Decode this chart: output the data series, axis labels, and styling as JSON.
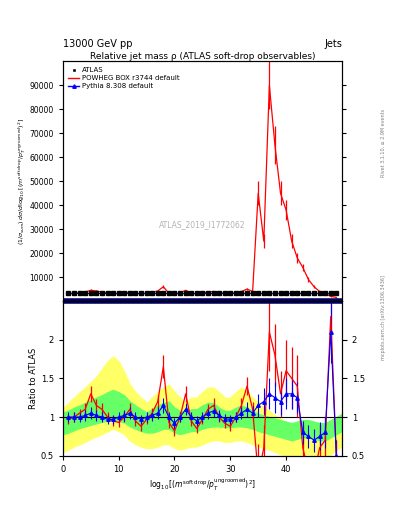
{
  "title": "Relative jet mass ρ (ATLAS soft-drop observables)",
  "header_left": "13000 GeV pp",
  "header_right": "Jets",
  "right_label_top": "Rivet 3.1.10, ≥ 2.9M events",
  "right_label_bot": "mcplots.cern.ch [arXiv:1306.3436]",
  "watermark": "ATLAS_2019_I1772062",
  "ylabel_ratio": "Ratio to ATLAS",
  "xlabel": "$\\log_{10}[(m^{\\mathrm{soft\\,drop}}/p_T^{\\mathrm{ungroomed}})^2]$",
  "ylim_main": [
    0,
    100000
  ],
  "ylim_ratio": [
    0.5,
    2.5
  ],
  "xlim": [
    0,
    50
  ],
  "xticks": [
    0,
    10,
    20,
    30,
    40
  ],
  "xticklabels": [
    "0",
    "10",
    "20",
    "30",
    "40"
  ],
  "yticks_main": [
    10000,
    20000,
    30000,
    40000,
    50000,
    60000,
    70000,
    80000,
    90000
  ],
  "ytick_main_labels": [
    "10000",
    "20000",
    "30000",
    "40000",
    "50000",
    "60000",
    "70000",
    "80000",
    "90000"
  ],
  "yticks_ratio": [
    0.5,
    1.0,
    1.5,
    2.0
  ],
  "ytick_ratio_labels": [
    "0.5",
    "1",
    "1.5",
    "2"
  ],
  "atlas_x": [
    1,
    2,
    3,
    4,
    5,
    6,
    7,
    8,
    9,
    10,
    11,
    12,
    13,
    14,
    15,
    16,
    17,
    18,
    19,
    20,
    21,
    22,
    23,
    24,
    25,
    26,
    27,
    28,
    29,
    30,
    31,
    32,
    33,
    34,
    35,
    36,
    37,
    38,
    39,
    40,
    41,
    42,
    43,
    44,
    45,
    46,
    47,
    48,
    49
  ],
  "atlas_y": [
    3200,
    3200,
    3200,
    3200,
    3200,
    3200,
    3200,
    3200,
    3200,
    3200,
    3200,
    3200,
    3200,
    3200,
    3200,
    3200,
    3200,
    3200,
    3200,
    3200,
    3200,
    3200,
    3200,
    3200,
    3200,
    3200,
    3200,
    3200,
    3200,
    3200,
    3200,
    3200,
    3200,
    3200,
    3200,
    3200,
    3200,
    3200,
    3200,
    3200,
    3200,
    3200,
    3200,
    3200,
    3200,
    3200,
    3200,
    3200,
    3200
  ],
  "atlas_yerr": [
    200,
    200,
    200,
    200,
    200,
    200,
    200,
    200,
    200,
    200,
    200,
    200,
    200,
    200,
    200,
    200,
    200,
    200,
    200,
    200,
    200,
    200,
    200,
    200,
    200,
    200,
    200,
    200,
    200,
    200,
    200,
    200,
    200,
    200,
    200,
    200,
    200,
    200,
    200,
    200,
    200,
    200,
    200,
    200,
    200,
    200,
    200,
    200,
    200
  ],
  "powheg_x": [
    1,
    2,
    3,
    4,
    5,
    6,
    7,
    8,
    9,
    10,
    11,
    12,
    13,
    14,
    15,
    16,
    17,
    18,
    19,
    20,
    21,
    22,
    23,
    24,
    25,
    26,
    27,
    28,
    29,
    30,
    31,
    32,
    33,
    34,
    35,
    36,
    37,
    38,
    39,
    40,
    41,
    42,
    43,
    44,
    45,
    46,
    47,
    48,
    49
  ],
  "powheg_y": [
    3100,
    3200,
    3500,
    3800,
    4500,
    4200,
    3800,
    3500,
    3200,
    3100,
    3400,
    3800,
    3200,
    3000,
    3300,
    3700,
    4200,
    6000,
    3200,
    2800,
    3500,
    4500,
    3300,
    3000,
    3400,
    3800,
    4000,
    3500,
    3200,
    3100,
    3500,
    4000,
    5000,
    4000,
    45000,
    25000,
    90000,
    65000,
    45000,
    38000,
    25000,
    18000,
    14000,
    9000,
    6000,
    4000,
    3000,
    2000,
    1500
  ],
  "powheg_yerr": [
    200,
    200,
    200,
    300,
    400,
    300,
    300,
    200,
    200,
    200,
    200,
    300,
    200,
    200,
    200,
    200,
    300,
    500,
    200,
    200,
    200,
    300,
    200,
    200,
    200,
    200,
    300,
    200,
    200,
    200,
    200,
    300,
    400,
    400,
    5000,
    3000,
    10000,
    8000,
    5000,
    4000,
    3000,
    2000,
    1500,
    1000,
    700,
    400,
    300,
    200,
    200
  ],
  "pythia_x": [
    1,
    2,
    3,
    4,
    5,
    6,
    7,
    8,
    9,
    10,
    11,
    12,
    13,
    14,
    15,
    16,
    17,
    18,
    19,
    20,
    21,
    22,
    23,
    24,
    25,
    26,
    27,
    28,
    29,
    30,
    31,
    32,
    33,
    34,
    35,
    36,
    37,
    38,
    39,
    40,
    41,
    42,
    43,
    44,
    45,
    46,
    47,
    48,
    49
  ],
  "pythia_y": [
    3200,
    3200,
    3200,
    3200,
    3200,
    3200,
    3200,
    3200,
    3200,
    3200,
    3200,
    3200,
    3200,
    3200,
    3200,
    3200,
    3200,
    3200,
    3200,
    3200,
    3200,
    3200,
    3200,
    3200,
    3200,
    3200,
    3200,
    3200,
    3200,
    3200,
    3200,
    3200,
    3200,
    3200,
    3200,
    3200,
    3200,
    3200,
    3200,
    3200,
    3200,
    3200,
    3200,
    3200,
    3200,
    3200,
    3200,
    3200,
    3200
  ],
  "pythia_yerr": [
    200,
    200,
    200,
    200,
    200,
    200,
    200,
    200,
    200,
    200,
    200,
    200,
    200,
    200,
    200,
    200,
    200,
    200,
    200,
    200,
    200,
    200,
    200,
    200,
    200,
    200,
    200,
    200,
    200,
    200,
    200,
    200,
    200,
    200,
    200,
    200,
    200,
    200,
    200,
    200,
    200,
    200,
    200,
    200,
    200,
    200,
    200,
    200,
    200
  ],
  "ratio_powheg_x": [
    1,
    2,
    3,
    4,
    5,
    6,
    7,
    8,
    9,
    10,
    11,
    12,
    13,
    14,
    15,
    16,
    17,
    18,
    19,
    20,
    21,
    22,
    23,
    24,
    25,
    26,
    27,
    28,
    29,
    30,
    31,
    32,
    33,
    34,
    35,
    36,
    37,
    38,
    39,
    40,
    41,
    42,
    43,
    44,
    45,
    46,
    47,
    48,
    49
  ],
  "ratio_powheg_y": [
    0.97,
    1.0,
    1.05,
    1.1,
    1.3,
    1.15,
    1.1,
    1.0,
    0.95,
    0.93,
    1.0,
    1.1,
    0.95,
    0.88,
    0.97,
    1.05,
    1.2,
    1.65,
    0.93,
    0.82,
    1.0,
    1.3,
    0.95,
    0.85,
    0.97,
    1.1,
    1.15,
    1.0,
    0.92,
    0.88,
    1.0,
    1.15,
    1.4,
    1.1,
    0.25,
    0.6,
    2.1,
    1.8,
    1.3,
    1.6,
    1.5,
    1.4,
    0.6,
    0.3,
    0.25,
    0.6,
    0.7,
    2.3,
    0.5
  ],
  "ratio_powheg_yerr": [
    0.06,
    0.06,
    0.06,
    0.08,
    0.1,
    0.08,
    0.08,
    0.07,
    0.06,
    0.06,
    0.07,
    0.08,
    0.06,
    0.06,
    0.06,
    0.07,
    0.09,
    0.15,
    0.07,
    0.07,
    0.07,
    0.1,
    0.07,
    0.06,
    0.06,
    0.07,
    0.09,
    0.07,
    0.06,
    0.06,
    0.07,
    0.09,
    0.12,
    0.1,
    0.4,
    0.3,
    0.5,
    0.4,
    0.3,
    0.4,
    0.4,
    0.4,
    0.3,
    0.2,
    0.2,
    0.3,
    0.3,
    0.5,
    0.2
  ],
  "ratio_pythia_x": [
    1,
    2,
    3,
    4,
    5,
    6,
    7,
    8,
    9,
    10,
    11,
    12,
    13,
    14,
    15,
    16,
    17,
    18,
    19,
    20,
    21,
    22,
    23,
    24,
    25,
    26,
    27,
    28,
    29,
    30,
    31,
    32,
    33,
    34,
    35,
    36,
    37,
    38,
    39,
    40,
    41,
    42,
    43,
    44,
    45,
    46,
    47,
    48,
    49
  ],
  "ratio_pythia_y": [
    1.0,
    1.0,
    1.0,
    1.02,
    1.05,
    1.02,
    1.0,
    0.97,
    0.97,
    1.0,
    1.02,
    1.05,
    1.0,
    0.97,
    1.0,
    1.02,
    1.05,
    1.15,
    1.0,
    0.92,
    1.0,
    1.1,
    1.0,
    0.95,
    1.0,
    1.05,
    1.08,
    1.02,
    0.98,
    0.97,
    1.0,
    1.05,
    1.1,
    1.05,
    1.15,
    1.2,
    1.3,
    1.25,
    1.2,
    1.3,
    1.3,
    1.25,
    0.8,
    0.75,
    0.7,
    0.75,
    0.8,
    2.1,
    0.5
  ],
  "ratio_pythia_yerr": [
    0.06,
    0.06,
    0.06,
    0.07,
    0.08,
    0.07,
    0.06,
    0.06,
    0.06,
    0.07,
    0.07,
    0.08,
    0.06,
    0.06,
    0.06,
    0.07,
    0.08,
    0.1,
    0.07,
    0.07,
    0.07,
    0.08,
    0.07,
    0.06,
    0.06,
    0.07,
    0.08,
    0.07,
    0.06,
    0.06,
    0.07,
    0.08,
    0.1,
    0.09,
    0.15,
    0.18,
    0.2,
    0.2,
    0.18,
    0.2,
    0.2,
    0.2,
    0.15,
    0.15,
    0.15,
    0.18,
    0.2,
    0.4,
    0.2
  ],
  "yellow_band_x": [
    0,
    1,
    2,
    3,
    4,
    5,
    6,
    7,
    8,
    9,
    10,
    11,
    12,
    13,
    14,
    15,
    16,
    17,
    18,
    19,
    20,
    21,
    22,
    23,
    24,
    25,
    26,
    27,
    28,
    29,
    30,
    31,
    32,
    33,
    34,
    35,
    36,
    37,
    38,
    39,
    40,
    41,
    42,
    43,
    44,
    45,
    46,
    47,
    48,
    49,
    50
  ],
  "yellow_band_low": [
    0.55,
    0.58,
    0.62,
    0.65,
    0.68,
    0.72,
    0.75,
    0.78,
    0.82,
    0.85,
    0.82,
    0.78,
    0.7,
    0.65,
    0.62,
    0.6,
    0.6,
    0.62,
    0.65,
    0.65,
    0.6,
    0.58,
    0.6,
    0.62,
    0.62,
    0.65,
    0.68,
    0.7,
    0.7,
    0.68,
    0.68,
    0.7,
    0.7,
    0.68,
    0.65,
    0.62,
    0.6,
    0.58,
    0.55,
    0.52,
    0.5,
    0.48,
    0.5,
    0.52,
    0.52,
    0.5,
    0.48,
    0.48,
    0.52,
    0.58,
    0.62
  ],
  "yellow_band_high": [
    1.12,
    1.18,
    1.25,
    1.32,
    1.38,
    1.45,
    1.52,
    1.62,
    1.72,
    1.78,
    1.72,
    1.58,
    1.42,
    1.32,
    1.25,
    1.18,
    1.25,
    1.32,
    1.38,
    1.42,
    1.32,
    1.25,
    1.18,
    1.25,
    1.25,
    1.32,
    1.38,
    1.38,
    1.32,
    1.25,
    1.25,
    1.32,
    1.38,
    1.32,
    1.25,
    1.18,
    1.12,
    1.08,
    1.02,
    0.98,
    0.92,
    0.88,
    0.9,
    0.92,
    0.92,
    0.9,
    0.88,
    0.88,
    0.92,
    0.98,
    1.05
  ],
  "green_band_low": [
    0.78,
    0.8,
    0.83,
    0.86,
    0.88,
    0.9,
    0.92,
    0.94,
    0.95,
    0.97,
    0.95,
    0.93,
    0.88,
    0.85,
    0.82,
    0.8,
    0.8,
    0.82,
    0.85,
    0.85,
    0.8,
    0.78,
    0.8,
    0.82,
    0.82,
    0.85,
    0.87,
    0.88,
    0.88,
    0.87,
    0.87,
    0.88,
    0.88,
    0.87,
    0.85,
    0.82,
    0.8,
    0.78,
    0.76,
    0.74,
    0.72,
    0.7,
    0.72,
    0.74,
    0.74,
    0.72,
    0.7,
    0.7,
    0.74,
    0.78,
    0.82
  ],
  "green_band_high": [
    1.06,
    1.08,
    1.12,
    1.15,
    1.18,
    1.22,
    1.25,
    1.28,
    1.32,
    1.35,
    1.32,
    1.28,
    1.2,
    1.15,
    1.1,
    1.06,
    1.1,
    1.15,
    1.18,
    1.2,
    1.12,
    1.08,
    1.06,
    1.1,
    1.1,
    1.15,
    1.18,
    1.18,
    1.12,
    1.08,
    1.08,
    1.12,
    1.15,
    1.12,
    1.08,
    1.04,
    1.02,
    1.0,
    0.98,
    0.96,
    0.94,
    0.92,
    0.94,
    0.96,
    0.96,
    0.94,
    0.92,
    0.92,
    0.96,
    1.0,
    1.04
  ],
  "colors": {
    "atlas": "#000000",
    "powheg": "#ff0000",
    "pythia": "#0000ff",
    "yellow": "#ffff66",
    "green": "#66ff66",
    "separator": "#000066"
  }
}
